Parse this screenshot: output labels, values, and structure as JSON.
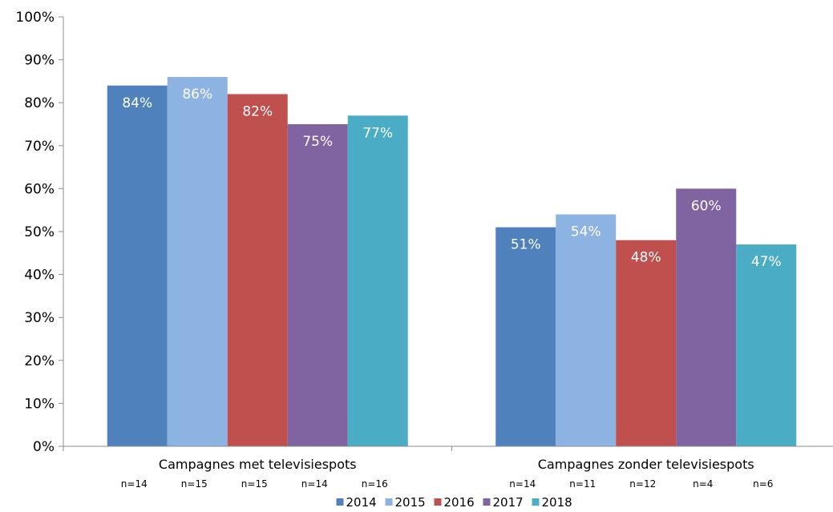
{
  "chart_data": {
    "type": "bar",
    "categories": [
      "Campagnes met televisiespots",
      "Campagnes zonder televisiespots"
    ],
    "series": [
      {
        "name": "2014",
        "color": "#4f81bd",
        "values": [
          84,
          51
        ],
        "labels": [
          "84%",
          "51%"
        ],
        "n": [
          "n=14",
          "n=14"
        ]
      },
      {
        "name": "2015",
        "color": "#8db3e2",
        "values": [
          86,
          54
        ],
        "labels": [
          "86%",
          "54%"
        ],
        "n": [
          "n=15",
          "n=11"
        ]
      },
      {
        "name": "2016",
        "color": "#c0504d",
        "values": [
          82,
          48
        ],
        "labels": [
          "82%",
          "48%"
        ],
        "n": [
          "n=15",
          "n=12"
        ]
      },
      {
        "name": "2017",
        "color": "#8064a2",
        "values": [
          75,
          60
        ],
        "labels": [
          "75%",
          "60%"
        ],
        "n": [
          "n=14",
          "n=4"
        ]
      },
      {
        "name": "2018",
        "color": "#4bacc6",
        "values": [
          77,
          47
        ],
        "labels": [
          "77%",
          "47%"
        ],
        "n": [
          "n=16",
          "n=6"
        ]
      }
    ],
    "ylim": [
      0,
      100
    ],
    "yticks": [
      "0%",
      "10%",
      "20%",
      "30%",
      "40%",
      "50%",
      "60%",
      "70%",
      "80%",
      "90%",
      "100%"
    ],
    "title": "",
    "xlabel": "",
    "ylabel": "",
    "grid": false,
    "legend": "bottom"
  }
}
